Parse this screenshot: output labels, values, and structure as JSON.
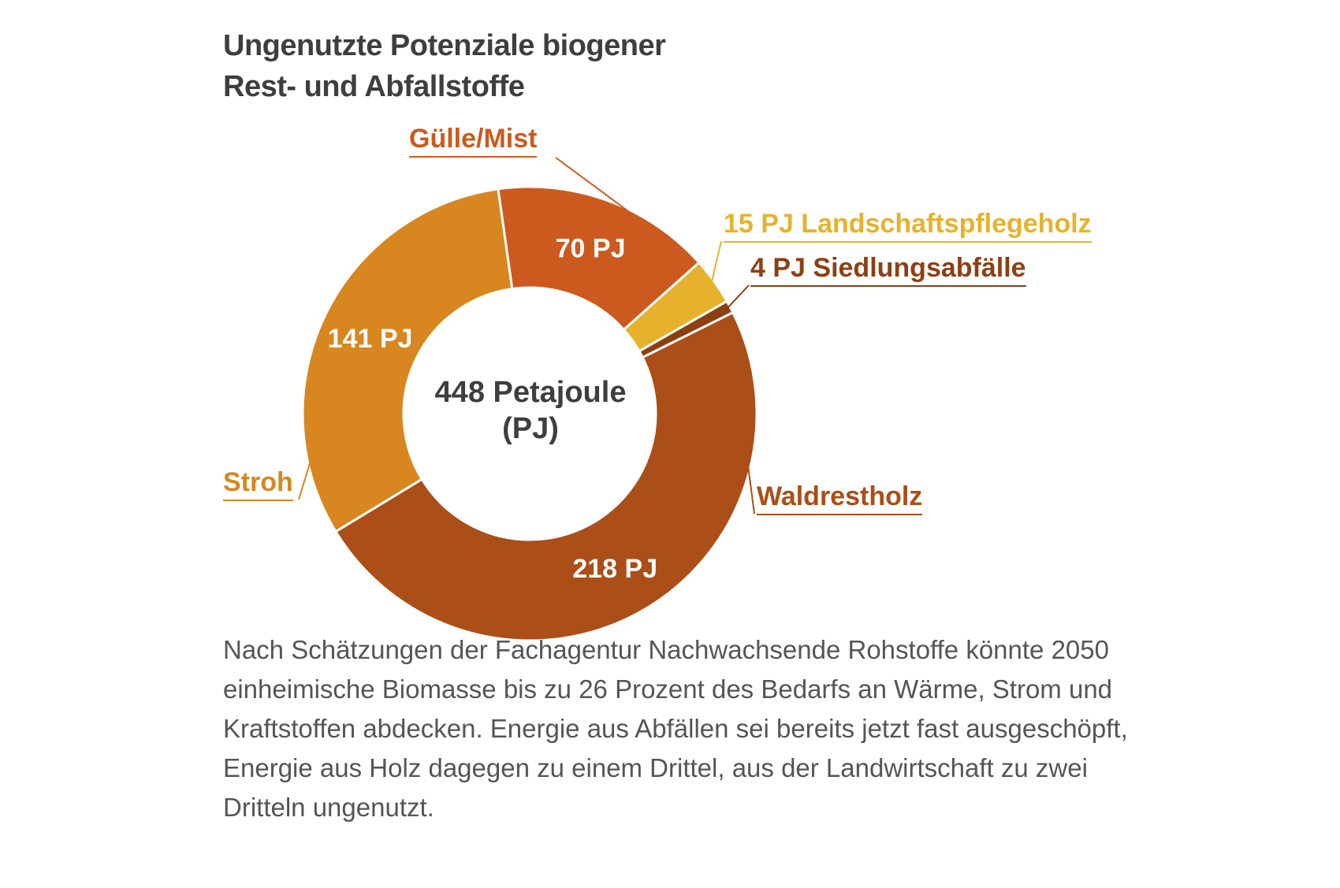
{
  "chart_data": {
    "type": "pie",
    "title": "Ungenutzte Potenziale biogener Rest- und Abfallstoffe",
    "title_lines": [
      "Ungenutzte Potenziale biogener",
      "Rest- und Abfallstoffe"
    ],
    "center_label": [
      "448 Petajoule",
      "(PJ)"
    ],
    "total": 448,
    "unit": "PJ",
    "slices": [
      {
        "name": "Gülle/Mist",
        "value": 70,
        "value_label": "70 PJ",
        "color": "#cc5a1e"
      },
      {
        "name": "Landschaftspflegeholz",
        "value": 15,
        "callout": "15 PJ Landschaftspflegeholz",
        "color": "#e6b22d"
      },
      {
        "name": "Siedlungsabfälle",
        "value": 4,
        "callout": "4 PJ Siedlungsabfälle",
        "color": "#8e3f12"
      },
      {
        "name": "Waldrestholz",
        "value": 218,
        "value_label": "218 PJ",
        "color": "#ab4e17"
      },
      {
        "name": "Stroh",
        "value": 141,
        "value_label": "141 PJ",
        "color": "#d8861f"
      }
    ],
    "legend": "callout labels"
  },
  "labels": {
    "guelle": "Gülle/Mist",
    "landschaft": "15 PJ Landschaftspflegeholz",
    "siedlung": "4 PJ Siedlungsabfälle",
    "wald": "Waldrestholz",
    "stroh": "Stroh"
  },
  "description": "Nach Schätzungen der Fachagentur Nachwachsende Rohstoffe könnte 2050 einheimische Biomasse bis zu 26 Prozent des Bedarfs an Wärme, Strom und Kraftstoffen abdecken. Energie aus Abfällen sei bereits jetzt fast ausgeschöpft, Energie aus Holz dagegen zu einem Drittel, aus der Landwirtschaft zu zwei Dritteln ungenutzt.",
  "colors": {
    "title": "#3e3e3e",
    "text": "#555555",
    "guelle": "#cc5a1e",
    "landschaft": "#e6b22d",
    "siedlung": "#8e3f12",
    "wald": "#ab4e17",
    "stroh": "#d8861f"
  }
}
